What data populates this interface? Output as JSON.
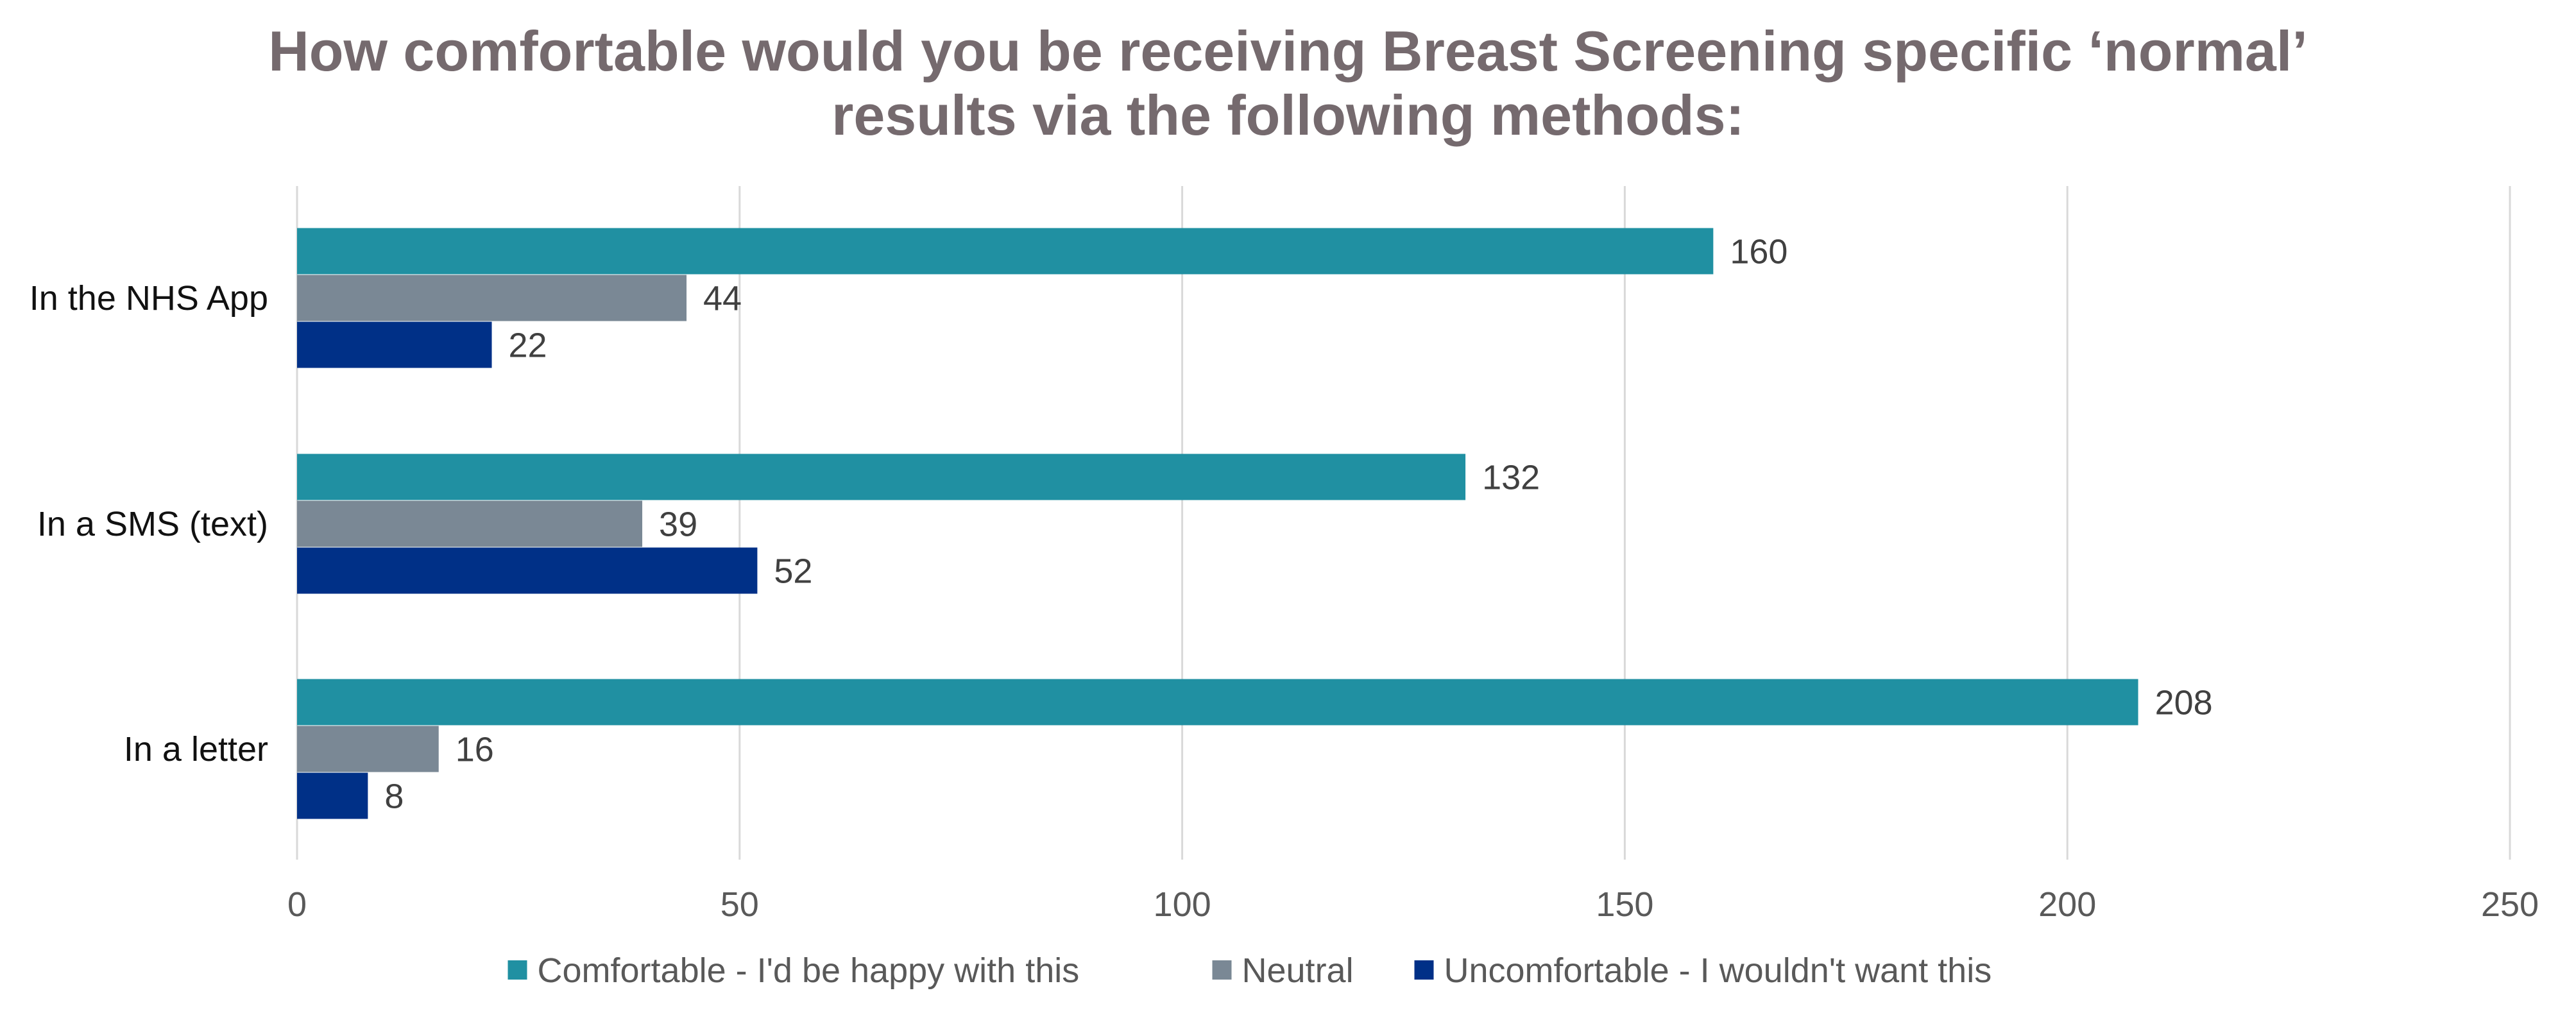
{
  "chart_data": {
    "type": "bar",
    "orientation": "horizontal",
    "title_lines": [
      "How comfortable would you be receiving Breast Screening specific ‘normal’",
      "results via the following methods:"
    ],
    "categories": [
      "In the NHS App",
      "In a SMS (text)",
      "In a letter"
    ],
    "series": [
      {
        "name": "Comfortable - I'd be happy with this",
        "color": "#2090a2",
        "values": [
          160,
          132,
          208
        ]
      },
      {
        "name": "Neutral",
        "color": "#7a8895",
        "values": [
          44,
          39,
          16
        ]
      },
      {
        "name": "Uncomfortable - I wouldn't want this",
        "color": "#003087",
        "values": [
          22,
          52,
          8
        ]
      }
    ],
    "xlim": [
      0,
      250
    ],
    "xticks": [
      0,
      50,
      100,
      150,
      200,
      250
    ],
    "grid": true,
    "legend_position": "bottom",
    "data_labels": true
  }
}
